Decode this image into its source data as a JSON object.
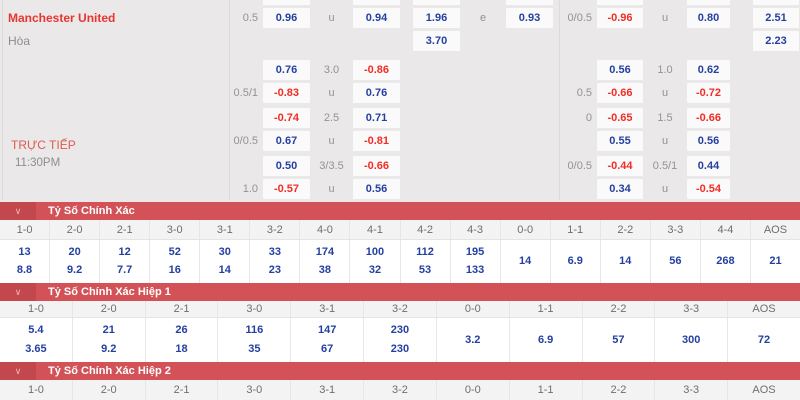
{
  "colors": {
    "banner_red": "#d25257",
    "banner_chevron_box": "#c3484d",
    "odds_blue": "#2440a0",
    "odds_red": "#f02d26",
    "team_red": "#e93531",
    "live_red": "#e05a4e",
    "page_bg": "#eae8e8"
  },
  "odds_panel": {
    "team": "Manchester United",
    "draw": "Hòa",
    "live_label": "TRỰC TIẾP",
    "live_time": "11:30PM",
    "rows": [
      {
        "hcp": "0.5",
        "o1": {
          "v": "0.96",
          "c": "b"
        },
        "m": "u",
        "o2": {
          "v": "0.94",
          "c": "b"
        },
        "x1": {
          "v": "1.96",
          "c": "b"
        },
        "e": "e",
        "x2": {
          "v": "0.93",
          "c": "b"
        },
        "hcp2": "0/0.5",
        "o3": {
          "v": "-0.96",
          "c": "r"
        },
        "m2": "u",
        "o4": {
          "v": "0.80",
          "c": "b"
        },
        "x3": {
          "v": "2.51",
          "c": "b"
        }
      },
      {
        "x1": {
          "v": "3.70",
          "c": "b"
        },
        "x3": {
          "v": "2.23",
          "c": "b"
        }
      },
      {
        "o1": {
          "v": "0.76",
          "c": "b"
        },
        "m": "3.0",
        "o2": {
          "v": "-0.86",
          "c": "r"
        },
        "o3": {
          "v": "0.56",
          "c": "b"
        },
        "m2": "1.0",
        "o4": {
          "v": "0.62",
          "c": "b"
        }
      },
      {
        "hcp": "0.5/1",
        "o1": {
          "v": "-0.83",
          "c": "r"
        },
        "m": "u",
        "o2": {
          "v": "0.76",
          "c": "b"
        },
        "hcp2": "0.5",
        "o3": {
          "v": "-0.66",
          "c": "r"
        },
        "m2": "u",
        "o4": {
          "v": "-0.72",
          "c": "r"
        }
      },
      {
        "o1": {
          "v": "-0.74",
          "c": "r"
        },
        "m": "2.5",
        "o2": {
          "v": "0.71",
          "c": "b"
        },
        "hcp2": "0",
        "o3": {
          "v": "-0.65",
          "c": "r"
        },
        "m2": "1.5",
        "o4": {
          "v": "-0.66",
          "c": "r"
        }
      },
      {
        "hcp": "0/0.5",
        "o1": {
          "v": "0.67",
          "c": "b"
        },
        "m": "u",
        "o2": {
          "v": "-0.81",
          "c": "r"
        },
        "o3": {
          "v": "0.55",
          "c": "b"
        },
        "m2": "u",
        "o4": {
          "v": "0.56",
          "c": "b"
        }
      },
      {
        "o1": {
          "v": "0.50",
          "c": "b"
        },
        "m": "3/3.5",
        "o2": {
          "v": "-0.66",
          "c": "r"
        },
        "hcp2": "0/0.5",
        "o3": {
          "v": "-0.44",
          "c": "r"
        },
        "m2": "0.5/1",
        "o4": {
          "v": "0.44",
          "c": "b"
        }
      },
      {
        "hcp": "1.0",
        "o1": {
          "v": "-0.57",
          "c": "r"
        },
        "m": "u",
        "o2": {
          "v": "0.56",
          "c": "b"
        },
        "o3": {
          "v": "0.34",
          "c": "b"
        },
        "m2": "u",
        "o4": {
          "v": "-0.54",
          "c": "r"
        }
      }
    ]
  },
  "sections": [
    {
      "title": "Tỷ Số Chính Xác",
      "columns": [
        "1-0",
        "2-0",
        "2-1",
        "3-0",
        "3-1",
        "3-2",
        "4-0",
        "4-1",
        "4-2",
        "4-3",
        "0-0",
        "1-1",
        "2-2",
        "3-3",
        "4-4",
        "AOS"
      ],
      "values": [
        [
          "13",
          "8.8"
        ],
        [
          "20",
          "9.2"
        ],
        [
          "12",
          "7.7"
        ],
        [
          "52",
          "16"
        ],
        [
          "30",
          "14"
        ],
        [
          "33",
          "23"
        ],
        [
          "174",
          "38"
        ],
        [
          "100",
          "32"
        ],
        [
          "112",
          "53"
        ],
        [
          "195",
          "133"
        ],
        [
          "14"
        ],
        [
          "6.9"
        ],
        [
          "14"
        ],
        [
          "56"
        ],
        [
          "268"
        ],
        [
          "21"
        ]
      ]
    },
    {
      "title": "Tỷ Số Chính Xác Hiệp 1",
      "columns": [
        "1-0",
        "2-0",
        "2-1",
        "3-0",
        "3-1",
        "3-2",
        "0-0",
        "1-1",
        "2-2",
        "3-3",
        "AOS"
      ],
      "values": [
        [
          "5.4",
          "3.65"
        ],
        [
          "21",
          "9.2"
        ],
        [
          "26",
          "18"
        ],
        [
          "116",
          "35"
        ],
        [
          "147",
          "67"
        ],
        [
          "230",
          "230"
        ],
        [
          "3.2"
        ],
        [
          "6.9"
        ],
        [
          "57"
        ],
        [
          "300"
        ],
        [
          "72"
        ]
      ]
    },
    {
      "title": "Tỷ Số Chính Xác Hiệp 2",
      "columns": [
        "1-0",
        "2-0",
        "2-1",
        "3-0",
        "3-1",
        "3-2",
        "0-0",
        "1-1",
        "2-2",
        "3-3",
        "AOS"
      ],
      "values": []
    }
  ]
}
